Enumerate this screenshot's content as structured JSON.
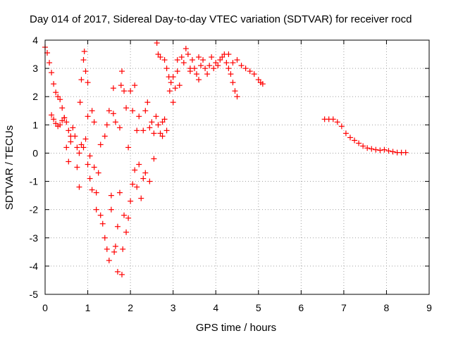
{
  "chart_data": {
    "type": "scatter",
    "marker": "+",
    "title": "Day 014 of 2017, Sidereal Day-to-day VTEC variation (SDTVAR) for receiver rocd",
    "xlabel": "GPS time / hours",
    "ylabel": "SDTVAR / TECUs",
    "xlim": [
      0,
      9
    ],
    "ylim": [
      -5,
      4
    ],
    "xticks": [
      0,
      1,
      2,
      3,
      4,
      5,
      6,
      7,
      8,
      9
    ],
    "yticks": [
      -5,
      -4,
      -3,
      -2,
      -1,
      0,
      1,
      2,
      3,
      4
    ],
    "grid": true,
    "series_color": "#ff0000",
    "series": [
      {
        "name": "SDTVAR",
        "points": [
          [
            0.0,
            3.75
          ],
          [
            0.05,
            3.55
          ],
          [
            0.1,
            3.2
          ],
          [
            0.15,
            2.85
          ],
          [
            0.2,
            2.45
          ],
          [
            0.25,
            2.15
          ],
          [
            0.3,
            2.0
          ],
          [
            0.35,
            1.9
          ],
          [
            0.4,
            1.6
          ],
          [
            0.45,
            1.25
          ],
          [
            0.15,
            1.35
          ],
          [
            0.2,
            1.2
          ],
          [
            0.25,
            1.05
          ],
          [
            0.3,
            0.95
          ],
          [
            0.35,
            1.0
          ],
          [
            0.4,
            1.15
          ],
          [
            0.45,
            1.25
          ],
          [
            0.5,
            1.1
          ],
          [
            0.55,
            0.8
          ],
          [
            0.6,
            0.6
          ],
          [
            0.5,
            0.2
          ],
          [
            0.55,
            -0.3
          ],
          [
            0.6,
            0.4
          ],
          [
            0.65,
            0.9
          ],
          [
            0.7,
            0.6
          ],
          [
            0.75,
            0.2
          ],
          [
            0.8,
            0.0
          ],
          [
            0.85,
            0.3
          ],
          [
            0.9,
            0.2
          ],
          [
            0.95,
            0.5
          ],
          [
            0.75,
            -0.5
          ],
          [
            0.8,
            -1.2
          ],
          [
            0.82,
            1.8
          ],
          [
            0.85,
            2.6
          ],
          [
            0.9,
            3.3
          ],
          [
            0.92,
            3.6
          ],
          [
            0.95,
            2.9
          ],
          [
            1.0,
            2.5
          ],
          [
            1.0,
            1.3
          ],
          [
            1.05,
            -0.1
          ],
          [
            1.0,
            -0.4
          ],
          [
            1.05,
            -0.9
          ],
          [
            1.1,
            -1.3
          ],
          [
            1.1,
            1.5
          ],
          [
            1.15,
            1.1
          ],
          [
            1.15,
            -0.5
          ],
          [
            1.2,
            -1.4
          ],
          [
            1.2,
            -2.0
          ],
          [
            1.25,
            -0.7
          ],
          [
            1.3,
            0.3
          ],
          [
            1.3,
            -2.2
          ],
          [
            1.35,
            -2.5
          ],
          [
            1.4,
            -3.0
          ],
          [
            1.4,
            0.6
          ],
          [
            1.45,
            -3.4
          ],
          [
            1.45,
            1.0
          ],
          [
            1.5,
            -3.8
          ],
          [
            1.5,
            1.5
          ],
          [
            1.55,
            -2.0
          ],
          [
            1.55,
            -1.5
          ],
          [
            1.6,
            1.4
          ],
          [
            1.6,
            2.3
          ],
          [
            1.62,
            -3.5
          ],
          [
            1.65,
            1.1
          ],
          [
            1.65,
            -3.3
          ],
          [
            1.7,
            -2.6
          ],
          [
            1.7,
            -4.2
          ],
          [
            1.75,
            0.9
          ],
          [
            1.75,
            -1.4
          ],
          [
            1.8,
            -4.3
          ],
          [
            1.78,
            2.4
          ],
          [
            1.8,
            2.9
          ],
          [
            1.82,
            -3.4
          ],
          [
            1.85,
            2.2
          ],
          [
            1.85,
            -2.2
          ],
          [
            1.9,
            -2.8
          ],
          [
            1.9,
            1.6
          ],
          [
            1.95,
            -2.3
          ],
          [
            1.95,
            0.2
          ],
          [
            2.0,
            -1.7
          ],
          [
            2.0,
            2.2
          ],
          [
            2.05,
            -1.1
          ],
          [
            2.05,
            1.5
          ],
          [
            2.1,
            -0.6
          ],
          [
            2.1,
            2.4
          ],
          [
            2.15,
            -1.2
          ],
          [
            2.15,
            0.8
          ],
          [
            2.2,
            -0.4
          ],
          [
            2.2,
            1.3
          ],
          [
            2.25,
            -1.6
          ],
          [
            2.3,
            0.8
          ],
          [
            2.3,
            -0.9
          ],
          [
            2.35,
            1.5
          ],
          [
            2.35,
            -0.7
          ],
          [
            2.4,
            1.8
          ],
          [
            2.45,
            0.9
          ],
          [
            2.45,
            -1.0
          ],
          [
            2.5,
            1.1
          ],
          [
            2.55,
            -0.2
          ],
          [
            2.55,
            0.7
          ],
          [
            2.6,
            1.3
          ],
          [
            2.62,
            3.9
          ],
          [
            2.65,
            1.0
          ],
          [
            2.65,
            3.5
          ],
          [
            2.7,
            0.7
          ],
          [
            2.7,
            3.4
          ],
          [
            2.75,
            1.1
          ],
          [
            2.75,
            0.6
          ],
          [
            2.8,
            3.3
          ],
          [
            2.8,
            1.2
          ],
          [
            2.85,
            3.0
          ],
          [
            2.85,
            0.8
          ],
          [
            2.9,
            2.7
          ],
          [
            2.92,
            2.2
          ],
          [
            2.95,
            2.5
          ],
          [
            3.0,
            2.7
          ],
          [
            3.0,
            1.8
          ],
          [
            3.05,
            2.3
          ],
          [
            3.1,
            2.9
          ],
          [
            3.1,
            3.3
          ],
          [
            3.15,
            2.4
          ],
          [
            3.2,
            3.4
          ],
          [
            3.25,
            3.2
          ],
          [
            3.3,
            3.7
          ],
          [
            3.35,
            3.5
          ],
          [
            3.4,
            3.0
          ],
          [
            3.4,
            2.9
          ],
          [
            3.45,
            3.3
          ],
          [
            3.5,
            3.0
          ],
          [
            3.55,
            2.8
          ],
          [
            3.6,
            3.4
          ],
          [
            3.6,
            2.6
          ],
          [
            3.65,
            3.1
          ],
          [
            3.7,
            3.3
          ],
          [
            3.75,
            3.0
          ],
          [
            3.8,
            2.8
          ],
          [
            3.85,
            3.1
          ],
          [
            3.9,
            3.4
          ],
          [
            3.95,
            3.0
          ],
          [
            4.0,
            3.2
          ],
          [
            4.05,
            3.1
          ],
          [
            4.1,
            3.3
          ],
          [
            4.15,
            3.4
          ],
          [
            4.2,
            3.5
          ],
          [
            4.25,
            3.2
          ],
          [
            4.3,
            3.0
          ],
          [
            4.3,
            3.5
          ],
          [
            4.35,
            2.8
          ],
          [
            4.4,
            2.5
          ],
          [
            4.45,
            2.2
          ],
          [
            4.5,
            2.0
          ],
          [
            4.4,
            3.2
          ],
          [
            4.5,
            3.3
          ],
          [
            4.6,
            3.1
          ],
          [
            4.7,
            3.0
          ],
          [
            4.8,
            2.9
          ],
          [
            4.9,
            2.8
          ],
          [
            5.0,
            2.6
          ],
          [
            5.05,
            2.5
          ],
          [
            5.1,
            2.45
          ],
          [
            6.55,
            1.2
          ],
          [
            6.65,
            1.2
          ],
          [
            6.75,
            1.2
          ],
          [
            6.85,
            1.1
          ],
          [
            6.95,
            0.95
          ],
          [
            7.05,
            0.7
          ],
          [
            7.15,
            0.55
          ],
          [
            7.25,
            0.45
          ],
          [
            7.35,
            0.35
          ],
          [
            7.45,
            0.25
          ],
          [
            7.55,
            0.18
          ],
          [
            7.65,
            0.15
          ],
          [
            7.75,
            0.12
          ],
          [
            7.85,
            0.1
          ],
          [
            7.95,
            0.12
          ],
          [
            8.05,
            0.08
          ],
          [
            8.15,
            0.05
          ],
          [
            8.25,
            0.02
          ],
          [
            8.35,
            0.02
          ],
          [
            8.45,
            0.02
          ]
        ]
      }
    ]
  }
}
